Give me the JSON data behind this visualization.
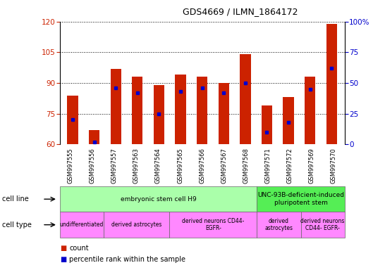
{
  "title": "GDS4669 / ILMN_1864172",
  "samples": [
    "GSM997555",
    "GSM997556",
    "GSM997557",
    "GSM997563",
    "GSM997564",
    "GSM997565",
    "GSM997566",
    "GSM997567",
    "GSM997568",
    "GSM997571",
    "GSM997572",
    "GSM997569",
    "GSM997570"
  ],
  "counts": [
    84,
    67,
    97,
    93,
    89,
    94,
    93,
    90,
    104,
    79,
    83,
    93,
    119
  ],
  "percentiles": [
    20,
    2,
    46,
    42,
    25,
    43,
    46,
    42,
    50,
    10,
    18,
    45,
    62
  ],
  "ylim_left": [
    60,
    120
  ],
  "ylim_right": [
    0,
    100
  ],
  "yticks_left": [
    60,
    75,
    90,
    105,
    120
  ],
  "yticks_right": [
    0,
    25,
    50,
    75,
    100
  ],
  "ytick_labels_right": [
    "0",
    "25",
    "50",
    "75",
    "100%"
  ],
  "bar_color": "#cc2200",
  "marker_color": "#0000cc",
  "bar_width": 0.5,
  "cell_line_groups": [
    {
      "label": "embryonic stem cell H9",
      "start": 0,
      "end": 8,
      "color": "#aaffaa"
    },
    {
      "label": "UNC-93B-deficient-induced\npluripotent stem",
      "start": 9,
      "end": 12,
      "color": "#55ee55"
    }
  ],
  "cell_type_groups": [
    {
      "label": "undifferentiated",
      "start": 0,
      "end": 1,
      "color": "#ff88ff"
    },
    {
      "label": "derived astrocytes",
      "start": 2,
      "end": 4,
      "color": "#ff88ff"
    },
    {
      "label": "derived neurons CD44-\nEGFR-",
      "start": 5,
      "end": 8,
      "color": "#ff88ff"
    },
    {
      "label": "derived\nastrocytes",
      "start": 9,
      "end": 10,
      "color": "#ff88ff"
    },
    {
      "label": "derived neurons\nCD44- EGFR-",
      "start": 11,
      "end": 12,
      "color": "#ff88ff"
    }
  ],
  "legend_count_label": "count",
  "legend_percentile_label": "percentile rank within the sample",
  "left_tick_color": "#cc2200",
  "right_tick_color": "#0000cc",
  "xtick_bg_color": "#cccccc",
  "cell_line_label": "cell line",
  "cell_type_label": "cell type"
}
